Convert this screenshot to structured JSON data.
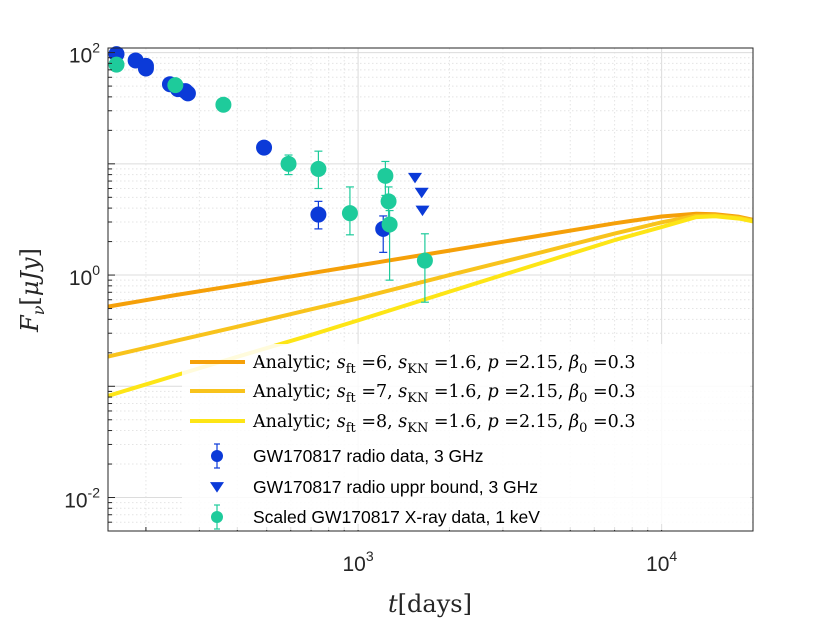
{
  "chart_data": {
    "type": "scatter",
    "xscale": "log",
    "yscale": "log",
    "xlim": [
      150,
      20000
    ],
    "ylim": [
      0.005,
      110
    ],
    "x_ticks": [
      {
        "base": "10",
        "exp": "3",
        "value": 1000
      },
      {
        "base": "10",
        "exp": "4",
        "value": 10000
      }
    ],
    "y_ticks": [
      {
        "base": "10",
        "exp": "2",
        "value": 100
      },
      {
        "base": "10",
        "exp": "0",
        "value": 1
      },
      {
        "base": "10",
        "exp": "-2",
        "value": 0.01
      }
    ],
    "xlabel": {
      "var": "t",
      "unit": "days"
    },
    "ylabel": {
      "var": "F",
      "sub": "ν",
      "unit": "μJy"
    },
    "colors": {
      "sft6": "#F5A009",
      "sft7": "#F8C31C",
      "sft8": "#FDE516",
      "radio": "#0B3AD8",
      "xray": "#1ECB9B"
    },
    "series": [
      {
        "name": "Analytic; s_ft=6, s_KN=1.6, p=2.15, β0=0.3",
        "kind": "line",
        "color_key": "sft6",
        "x": [
          150,
          250,
          400,
          700,
          1000,
          2000,
          4000,
          7000,
          10000,
          13000,
          15000,
          18000,
          20000
        ],
        "y": [
          0.52,
          0.66,
          0.81,
          1.04,
          1.22,
          1.66,
          2.27,
          2.92,
          3.36,
          3.56,
          3.52,
          3.34,
          3.14
        ]
      },
      {
        "name": "Analytic; s_ft=7, s_KN=1.6, p=2.15, β0=0.3",
        "kind": "line",
        "color_key": "sft7",
        "x": [
          150,
          250,
          400,
          700,
          1000,
          2000,
          4000,
          7000,
          10000,
          13000,
          15000,
          18000,
          20000
        ],
        "y": [
          0.185,
          0.256,
          0.343,
          0.492,
          0.617,
          1.0,
          1.6,
          2.36,
          2.98,
          3.42,
          3.44,
          3.28,
          3.1
        ]
      },
      {
        "name": "Analytic; s_ft=8, s_KN=1.6, p=2.15, β0=0.3",
        "kind": "line",
        "color_key": "sft8",
        "x": [
          150,
          250,
          400,
          700,
          1000,
          2000,
          4000,
          7000,
          10000,
          13000,
          15000,
          18000,
          20000
        ],
        "y": [
          0.082,
          0.125,
          0.184,
          0.29,
          0.391,
          0.71,
          1.28,
          2.06,
          2.7,
          3.32,
          3.38,
          3.22,
          3.04
        ]
      },
      {
        "name": "GW170817 radio data, 3 GHz",
        "kind": "errorbar",
        "marker": "circle",
        "color_key": "radio",
        "points": [
          {
            "x": 160,
            "y": 97,
            "lo": 92,
            "hi": 102
          },
          {
            "x": 185,
            "y": 85,
            "lo": 81,
            "hi": 89
          },
          {
            "x": 200,
            "y": 76,
            "lo": 72,
            "hi": 80
          },
          {
            "x": 200,
            "y": 72,
            "lo": 68,
            "hi": 76
          },
          {
            "x": 240,
            "y": 52,
            "lo": 48,
            "hi": 56
          },
          {
            "x": 255,
            "y": 47,
            "lo": 43,
            "hi": 51
          },
          {
            "x": 270,
            "y": 45,
            "lo": 41,
            "hi": 49
          },
          {
            "x": 275,
            "y": 43,
            "lo": 39,
            "hi": 47
          },
          {
            "x": 490,
            "y": 14,
            "lo": 12.5,
            "hi": 15.5
          },
          {
            "x": 740,
            "y": 3.5,
            "lo": 2.6,
            "hi": 4.6
          },
          {
            "x": 1210,
            "y": 2.6,
            "lo": 1.6,
            "hi": 3.4
          }
        ]
      },
      {
        "name": "GW170817 radio uppr bound, 3 GHz",
        "kind": "marker",
        "marker": "triangle-down",
        "color_key": "radio",
        "points": [
          {
            "x": 1540,
            "y": 7.5
          },
          {
            "x": 1620,
            "y": 5.5
          },
          {
            "x": 1630,
            "y": 3.8
          }
        ]
      },
      {
        "name": "Scaled GW170817 X-ray data, 1 keV",
        "kind": "errorbar",
        "marker": "circle",
        "color_key": "xray",
        "points": [
          {
            "x": 160,
            "y": 78,
            "lo": 74,
            "hi": 82
          },
          {
            "x": 250,
            "y": 51,
            "lo": 48,
            "hi": 54
          },
          {
            "x": 360,
            "y": 34,
            "lo": 30,
            "hi": 38
          },
          {
            "x": 590,
            "y": 10,
            "lo": 8.0,
            "hi": 12.0
          },
          {
            "x": 740,
            "y": 9.0,
            "lo": 6.0,
            "hi": 13.0
          },
          {
            "x": 940,
            "y": 3.6,
            "lo": 2.3,
            "hi": 6.2
          },
          {
            "x": 1230,
            "y": 7.8,
            "lo": 5.2,
            "hi": 10.5
          },
          {
            "x": 1260,
            "y": 4.6,
            "lo": 2.7,
            "hi": 6.2
          },
          {
            "x": 1270,
            "y": 2.85,
            "lo": 0.9,
            "hi": 3.8
          },
          {
            "x": 1660,
            "y": 1.35,
            "lo": 0.57,
            "hi": 2.35
          }
        ]
      }
    ],
    "legend": {
      "position": "bottom-right",
      "entries": [
        {
          "kind": "line",
          "color_key": "sft6",
          "sft": "6",
          "skn": "1.6",
          "p": "2.15",
          "beta": "0.3"
        },
        {
          "kind": "line",
          "color_key": "sft7",
          "sft": "7",
          "skn": "1.6",
          "p": "2.15",
          "beta": "0.3"
        },
        {
          "kind": "line",
          "color_key": "sft8",
          "sft": "8",
          "skn": "1.6",
          "p": "2.15",
          "beta": "0.3"
        },
        {
          "kind": "errorbar-circle",
          "color_key": "radio",
          "text": "GW170817 radio data, 3 GHz"
        },
        {
          "kind": "triangle",
          "color_key": "radio",
          "text": "GW170817 radio uppr bound, 3 GHz"
        },
        {
          "kind": "errorbar-circle",
          "color_key": "xray",
          "text": "Scaled GW170817 X-ray data, 1 keV"
        }
      ],
      "analytic_prefix": "Analytic; ",
      "sft_sym": "s",
      "sft_sub": "ft",
      "skn_sym": "s",
      "skn_sub": "KN",
      "p_sym": "p",
      "beta_sym": "β",
      "beta_sub": "0",
      "eq": " =",
      "sep": ", "
    }
  }
}
